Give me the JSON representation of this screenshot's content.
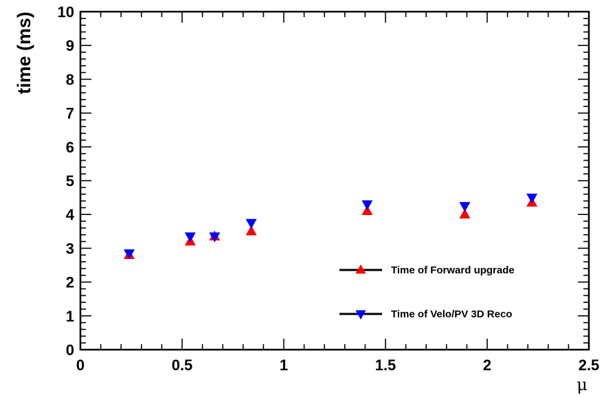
{
  "chart_data": {
    "type": "scatter",
    "xlabel": "μ",
    "ylabel": "time (ms)",
    "xlim": [
      0,
      2.5
    ],
    "ylim": [
      0,
      10
    ],
    "x_ticks": [
      "0",
      "0.5",
      "1",
      "1.5",
      "2",
      "2.5"
    ],
    "y_ticks": [
      "0",
      "1",
      "2",
      "3",
      "4",
      "5",
      "6",
      "7",
      "8",
      "9",
      "10"
    ],
    "grid": false,
    "legend_position": "bottom-right",
    "series": [
      {
        "name": "Time of Forward upgrade",
        "marker": "triangle-up",
        "color": "#ff0000",
        "x": [
          0.24,
          0.54,
          0.66,
          0.84,
          1.41,
          1.89,
          2.22
        ],
        "y": [
          2.8,
          3.2,
          3.35,
          3.5,
          4.1,
          4.0,
          4.35
        ]
      },
      {
        "name": "Time of Velo/PV 3D Reco",
        "marker": "triangle-down",
        "color": "#0000ff",
        "x": [
          0.24,
          0.54,
          0.66,
          0.84,
          1.41,
          1.89,
          2.22
        ],
        "y": [
          2.85,
          3.35,
          3.35,
          3.75,
          4.3,
          4.25,
          4.5
        ]
      }
    ]
  }
}
